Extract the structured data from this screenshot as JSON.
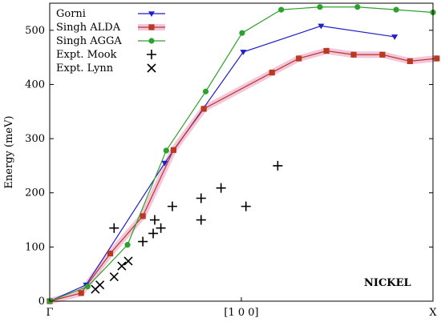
{
  "chart_data": {
    "type": "line",
    "xlabel": "",
    "ylabel": "Energy (meV)",
    "x_range": [
      0,
      1
    ],
    "ylim": [
      0,
      550
    ],
    "y_ticks": [
      0,
      100,
      200,
      300,
      400,
      500
    ],
    "x_ticks": [
      {
        "value": 0,
        "label": "Γ"
      },
      {
        "value": 0.5,
        "label": "[1 0 0]"
      },
      {
        "value": 1,
        "label": "X"
      }
    ],
    "grid": false,
    "legend_position": "top-left",
    "annotation": "NICKEL",
    "series": [
      {
        "name": "Gorni",
        "marker": "triangle-down",
        "color": "#1f1fc8",
        "points": [
          [
            0,
            0
          ],
          [
            0.095,
            30
          ],
          [
            0.3,
            255
          ],
          [
            0.505,
            460
          ],
          [
            0.708,
            508
          ],
          [
            0.9,
            488
          ]
        ]
      },
      {
        "name": "Singh ALDA",
        "marker": "square",
        "color": "#b83a22",
        "band_color": "#f4c6dd",
        "points": [
          [
            0,
            0
          ],
          [
            0.082,
            15
          ],
          [
            0.158,
            88
          ],
          [
            0.243,
            157
          ],
          [
            0.323,
            279
          ],
          [
            0.402,
            355
          ],
          [
            0.58,
            422
          ],
          [
            0.65,
            448
          ],
          [
            0.722,
            462
          ],
          [
            0.793,
            455
          ],
          [
            0.868,
            455
          ],
          [
            0.94,
            443
          ],
          [
            1.01,
            448
          ]
        ]
      },
      {
        "name": "Singh AGGA",
        "marker": "circle",
        "color": "#2da12d",
        "points": [
          [
            0,
            0
          ],
          [
            0.099,
            27
          ],
          [
            0.203,
            104
          ],
          [
            0.304,
            278
          ],
          [
            0.407,
            387
          ],
          [
            0.502,
            495
          ],
          [
            0.604,
            538
          ],
          [
            0.705,
            543
          ],
          [
            0.803,
            543
          ],
          [
            0.904,
            538
          ],
          [
            1.0,
            533
          ]
        ]
      },
      {
        "name": "Expt. Mook",
        "marker": "plus",
        "color": "#000000",
        "points": [
          [
            0.168,
            135
          ],
          [
            0.243,
            110
          ],
          [
            0.27,
            125
          ],
          [
            0.274,
            150
          ],
          [
            0.29,
            135
          ],
          [
            0.32,
            175
          ],
          [
            0.395,
            150
          ],
          [
            0.395,
            190
          ],
          [
            0.447,
            209
          ],
          [
            0.512,
            175
          ],
          [
            0.595,
            250
          ]
        ]
      },
      {
        "name": "Expt. Lynn",
        "marker": "cross",
        "color": "#000000",
        "points": [
          [
            0.119,
            22
          ],
          [
            0.131,
            30
          ],
          [
            0.168,
            45
          ],
          [
            0.188,
            65
          ],
          [
            0.205,
            74
          ]
        ]
      }
    ]
  }
}
